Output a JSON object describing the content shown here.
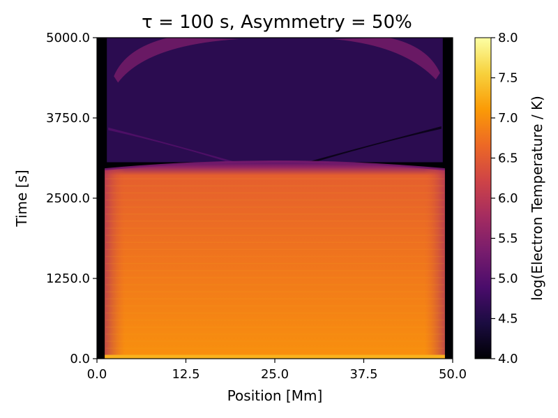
{
  "chart_data": {
    "type": "heatmap",
    "title": "τ = 100 s, Asymmetry = 50%",
    "xlabel": "Position [Mm]",
    "ylabel": "Time [s]",
    "xlim": [
      0,
      50
    ],
    "ylim": [
      0,
      5000
    ],
    "x_ticks": [
      0,
      12.5,
      25,
      37.5,
      50
    ],
    "x_tick_labels": [
      "0.0",
      "12.5",
      "25.0",
      "37.5",
      "50.0"
    ],
    "y_ticks": [
      0,
      1250,
      2500,
      3750,
      5000
    ],
    "y_tick_labels": [
      "0.0",
      "1250.0",
      "2500.0",
      "3750.0",
      "5000.0"
    ],
    "colorbar": {
      "label": "log(Electron Temperature / K)",
      "range": [
        4.0,
        8.0
      ],
      "colormap": "inferno",
      "ticks": [
        4.0,
        4.5,
        5.0,
        5.5,
        6.0,
        6.5,
        7.0,
        7.5,
        8.0
      ],
      "tick_labels": [
        "4.0",
        "4.5",
        "5.0",
        "5.5",
        "6.0",
        "6.5",
        "7.0",
        "7.5",
        "8.0"
      ]
    },
    "colormap_stops": [
      "#000004",
      "#1b0c41",
      "#4a0c6b",
      "#781c6d",
      "#a52c60",
      "#cf4446",
      "#ed6925",
      "#fb9b06",
      "#f7d13d",
      "#fcffa4"
    ],
    "field": {
      "description": "log10 electron temperature vs position and time",
      "chromosphere_edge_mm": [
        0.0,
        1.0,
        49.0,
        50.0
      ],
      "hot_phase": {
        "t_start_s": 0,
        "t_end_s": 2950,
        "log_T_start": 7.0,
        "log_T_end": 6.55,
        "log_T_edge_end": 5.8
      },
      "cooling_front_s": 3060,
      "condensed_phase": {
        "t_start_s": 3060,
        "t_end_s": 5000,
        "log_T": 4.6
      },
      "siphon_arcs_log_T": 5.4
    }
  }
}
